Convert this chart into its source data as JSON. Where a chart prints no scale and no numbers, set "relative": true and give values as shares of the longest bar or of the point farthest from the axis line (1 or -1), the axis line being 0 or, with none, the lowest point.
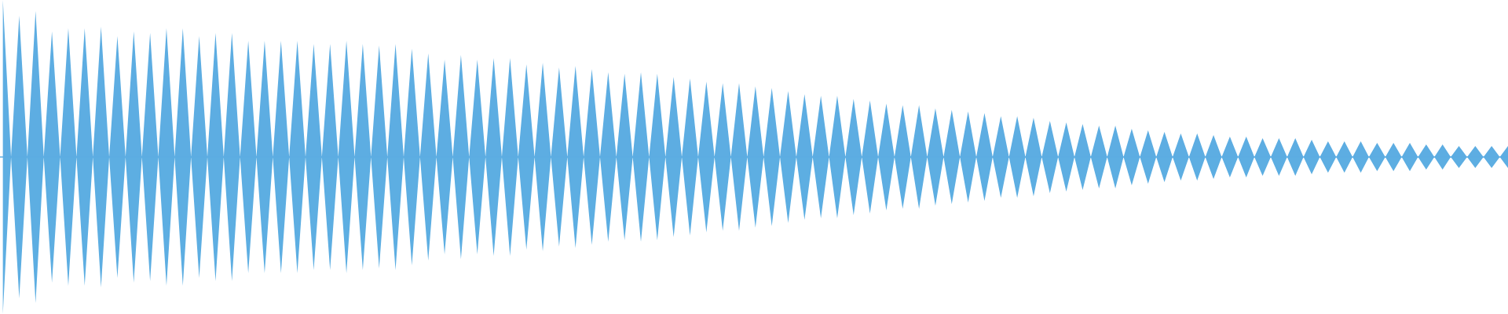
{
  "chart_data": {
    "type": "area",
    "relative": true,
    "grid": false,
    "legend": false,
    "ref_lines": [
      {
        "axis": "y",
        "value": 0,
        "color": "#5dade2"
      }
    ],
    "categories": [
      null,
      null,
      null,
      null,
      null,
      null,
      null,
      null,
      null,
      null,
      null,
      null,
      null,
      null,
      null,
      null,
      null,
      null,
      null,
      null,
      null,
      null,
      null,
      null,
      null,
      null,
      null,
      null,
      null,
      null,
      null,
      null,
      null,
      null,
      null,
      null,
      null,
      null,
      null,
      null,
      null,
      null,
      null,
      null,
      null,
      null,
      null,
      null,
      null,
      null,
      null,
      null,
      null,
      null,
      null,
      null,
      null,
      null,
      null,
      null,
      null,
      null,
      null,
      null,
      null,
      null,
      null,
      null,
      null,
      null,
      null,
      null,
      null,
      null,
      null,
      null,
      null,
      null,
      null,
      null,
      null,
      null,
      null,
      null,
      null,
      null,
      null,
      null,
      null,
      null,
      null,
      null,
      null,
      null,
      null,
      null,
      null,
      null,
      null,
      null,
      null,
      null,
      null,
      null,
      null,
      null,
      null,
      null,
      null,
      null,
      null,
      null,
      null,
      null,
      null,
      null,
      null,
      null,
      null,
      null,
      null,
      null,
      null,
      null,
      null,
      null,
      null,
      null,
      null,
      null,
      null,
      null,
      null,
      null,
      null,
      null,
      null,
      null,
      null,
      null,
      null,
      null,
      null,
      null,
      null,
      null,
      null,
      null,
      null,
      null,
      null,
      null,
      null,
      null,
      null,
      null,
      null,
      null,
      null,
      null,
      null,
      null,
      null,
      null,
      null,
      null,
      null,
      null,
      null,
      null,
      null,
      null,
      null,
      null,
      null,
      null,
      null,
      null,
      null,
      null,
      null,
      null,
      null,
      null,
      null
    ],
    "series": [
      {
        "color": "#5dade2",
        "values": [
          1.0,
          0,
          0.9,
          0,
          0.93,
          0,
          0.8,
          0,
          0.82,
          0,
          0.82,
          0,
          0.83,
          0,
          0.77,
          0,
          0.8,
          0,
          0.79,
          0,
          0.82,
          0,
          0.82,
          0,
          0.77,
          0,
          0.79,
          0,
          0.79,
          0,
          0.74,
          0,
          0.74,
          0,
          0.74,
          0,
          0.74,
          0,
          0.72,
          0,
          0.72,
          0,
          0.74,
          0,
          0.72,
          0,
          0.71,
          0,
          0.72,
          0,
          0.69,
          0,
          0.66,
          0,
          0.62,
          0,
          0.65,
          0,
          0.62,
          0,
          0.63,
          0,
          0.63,
          0,
          0.59,
          0,
          0.6,
          0,
          0.57,
          0,
          0.58,
          0,
          0.56,
          0,
          0.54,
          0,
          0.53,
          0,
          0.54,
          0,
          0.53,
          0,
          0.51,
          0,
          0.5,
          0,
          0.48,
          0,
          0.47,
          0,
          0.47,
          0,
          0.45,
          0,
          0.44,
          0,
          0.42,
          0,
          0.4,
          0,
          0.39,
          0,
          0.39,
          0,
          0.37,
          0,
          0.36,
          0,
          0.34,
          0,
          0.33,
          0,
          0.33,
          0,
          0.31,
          0,
          0.3,
          0,
          0.29,
          0,
          0.28,
          0,
          0.26,
          0,
          0.26,
          0,
          0.25,
          0,
          0.23,
          0,
          0.22,
          0,
          0.21,
          0,
          0.2,
          0,
          0.2,
          0,
          0.18,
          0,
          0.17,
          0,
          0.16,
          0,
          0.15,
          0,
          0.15,
          0,
          0.14,
          0,
          0.13,
          0,
          0.13,
          0,
          0.12,
          0,
          0.12,
          0,
          0.12,
          0,
          0.11,
          0,
          0.1,
          0,
          0.1,
          0,
          0.1,
          0,
          0.09,
          0,
          0.09,
          0,
          0.09,
          0,
          0.08,
          0,
          0.08,
          0,
          0.07,
          0,
          0.07,
          0,
          0.07,
          0,
          0.07
        ]
      },
      {
        "color": "#5daee2",
        "values": [
          -1.0,
          0,
          -0.9,
          0,
          -0.93,
          0,
          -0.8,
          0,
          -0.82,
          0,
          -0.82,
          0,
          -0.83,
          0,
          -0.77,
          0,
          -0.8,
          0,
          -0.79,
          0,
          -0.82,
          0,
          -0.82,
          0,
          -0.77,
          0,
          -0.79,
          0,
          -0.79,
          0,
          -0.74,
          0,
          -0.74,
          0,
          -0.74,
          0,
          -0.74,
          0,
          -0.72,
          0,
          -0.72,
          0,
          -0.74,
          0,
          -0.72,
          0,
          -0.71,
          0,
          -0.72,
          0,
          -0.69,
          0,
          -0.66,
          0,
          -0.62,
          0,
          -0.65,
          0,
          -0.62,
          0,
          -0.63,
          0,
          -0.63,
          0,
          -0.59,
          0,
          -0.6,
          0,
          -0.57,
          0,
          -0.58,
          0,
          -0.56,
          0,
          -0.54,
          0,
          -0.53,
          0,
          -0.54,
          0,
          -0.53,
          0,
          -0.51,
          0,
          -0.5,
          0,
          -0.48,
          0,
          -0.47,
          0,
          -0.47,
          0,
          -0.45,
          0,
          -0.44,
          0,
          -0.42,
          0,
          -0.4,
          0,
          -0.39,
          0,
          -0.39,
          0,
          -0.37,
          0,
          -0.36,
          0,
          -0.34,
          0,
          -0.33,
          0,
          -0.33,
          0,
          -0.31,
          0,
          -0.3,
          0,
          -0.29,
          0,
          -0.28,
          0,
          -0.26,
          0,
          -0.26,
          0,
          -0.25,
          0,
          -0.23,
          0,
          -0.22,
          0,
          -0.21,
          0,
          -0.2,
          0,
          -0.2,
          0,
          -0.18,
          0,
          -0.17,
          0,
          -0.16,
          0,
          -0.15,
          0,
          -0.15,
          0,
          -0.14,
          0,
          -0.13,
          0,
          -0.13,
          0,
          -0.12,
          0,
          -0.12,
          0,
          -0.12,
          0,
          -0.11,
          0,
          -0.1,
          0,
          -0.1,
          0,
          -0.1,
          0,
          -0.09,
          0,
          -0.09,
          0,
          -0.09,
          0,
          -0.08,
          0,
          -0.08,
          0,
          -0.07,
          0,
          -0.07,
          0,
          -0.07,
          0,
          -0.07
        ]
      }
    ]
  }
}
